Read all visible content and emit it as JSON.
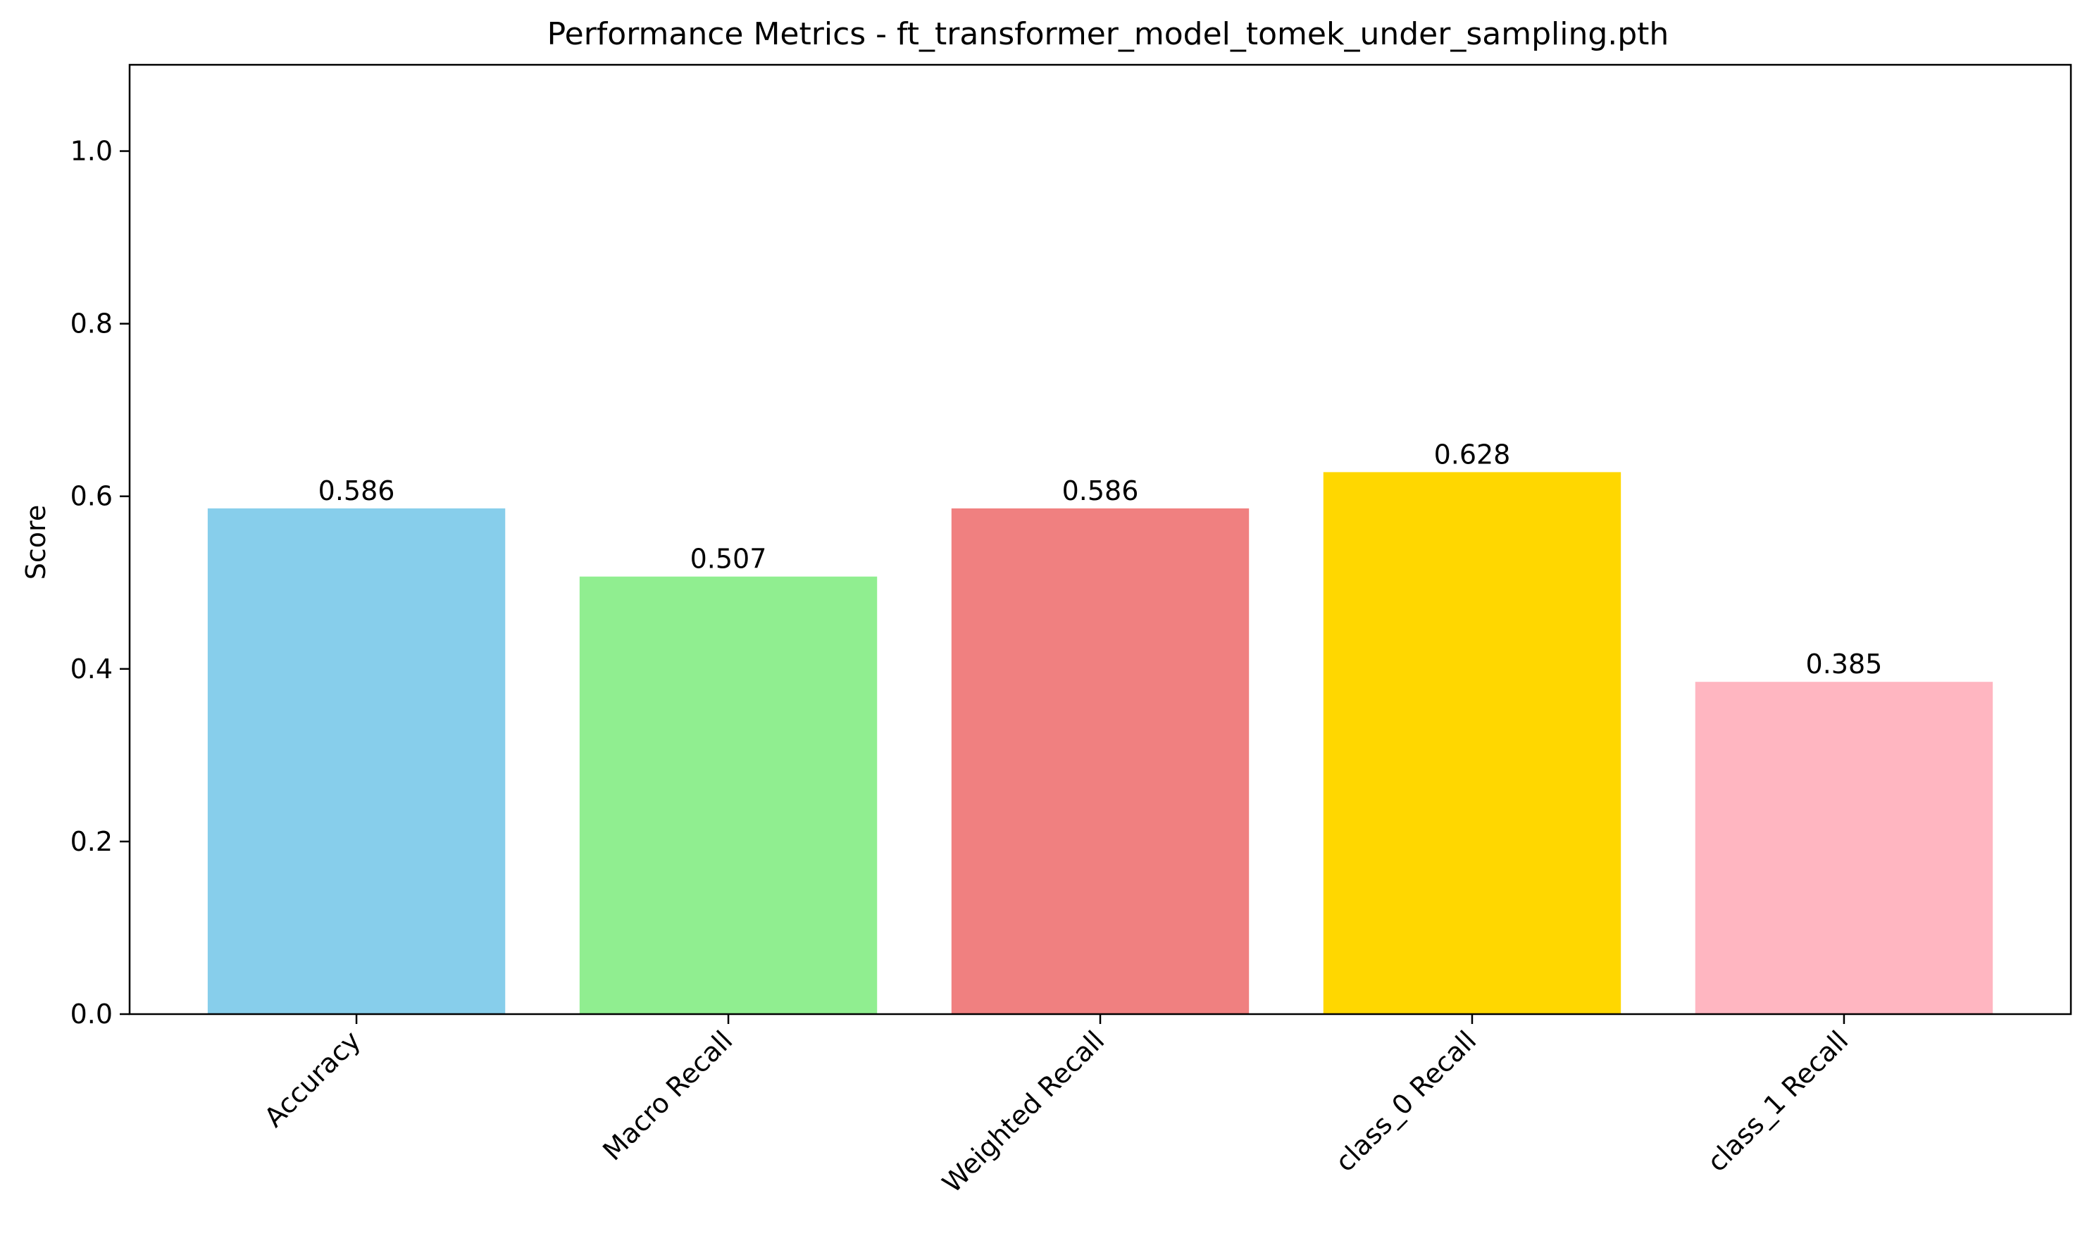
{
  "chart_data": {
    "type": "bar",
    "title": "Performance Metrics - ft_transformer_model_tomek_under_sampling.pth",
    "xlabel": "",
    "ylabel": "Score",
    "ylim": [
      0,
      1.1
    ],
    "yticks": [
      0.0,
      0.2,
      0.4,
      0.6,
      0.8,
      1.0
    ],
    "ytick_labels": [
      "0.0",
      "0.2",
      "0.4",
      "0.6",
      "0.8",
      "1.0"
    ],
    "grid": false,
    "categories": [
      "Accuracy",
      "Macro Recall",
      "Weighted Recall",
      "class_0 Recall",
      "class_1 Recall"
    ],
    "values": [
      0.586,
      0.507,
      0.586,
      0.628,
      0.385
    ],
    "value_labels": [
      "0.586",
      "0.507",
      "0.586",
      "0.628",
      "0.385"
    ],
    "colors": [
      "#87ceeb",
      "#90ee90",
      "#f08080",
      "#ffd700",
      "#ffb6c1"
    ]
  }
}
